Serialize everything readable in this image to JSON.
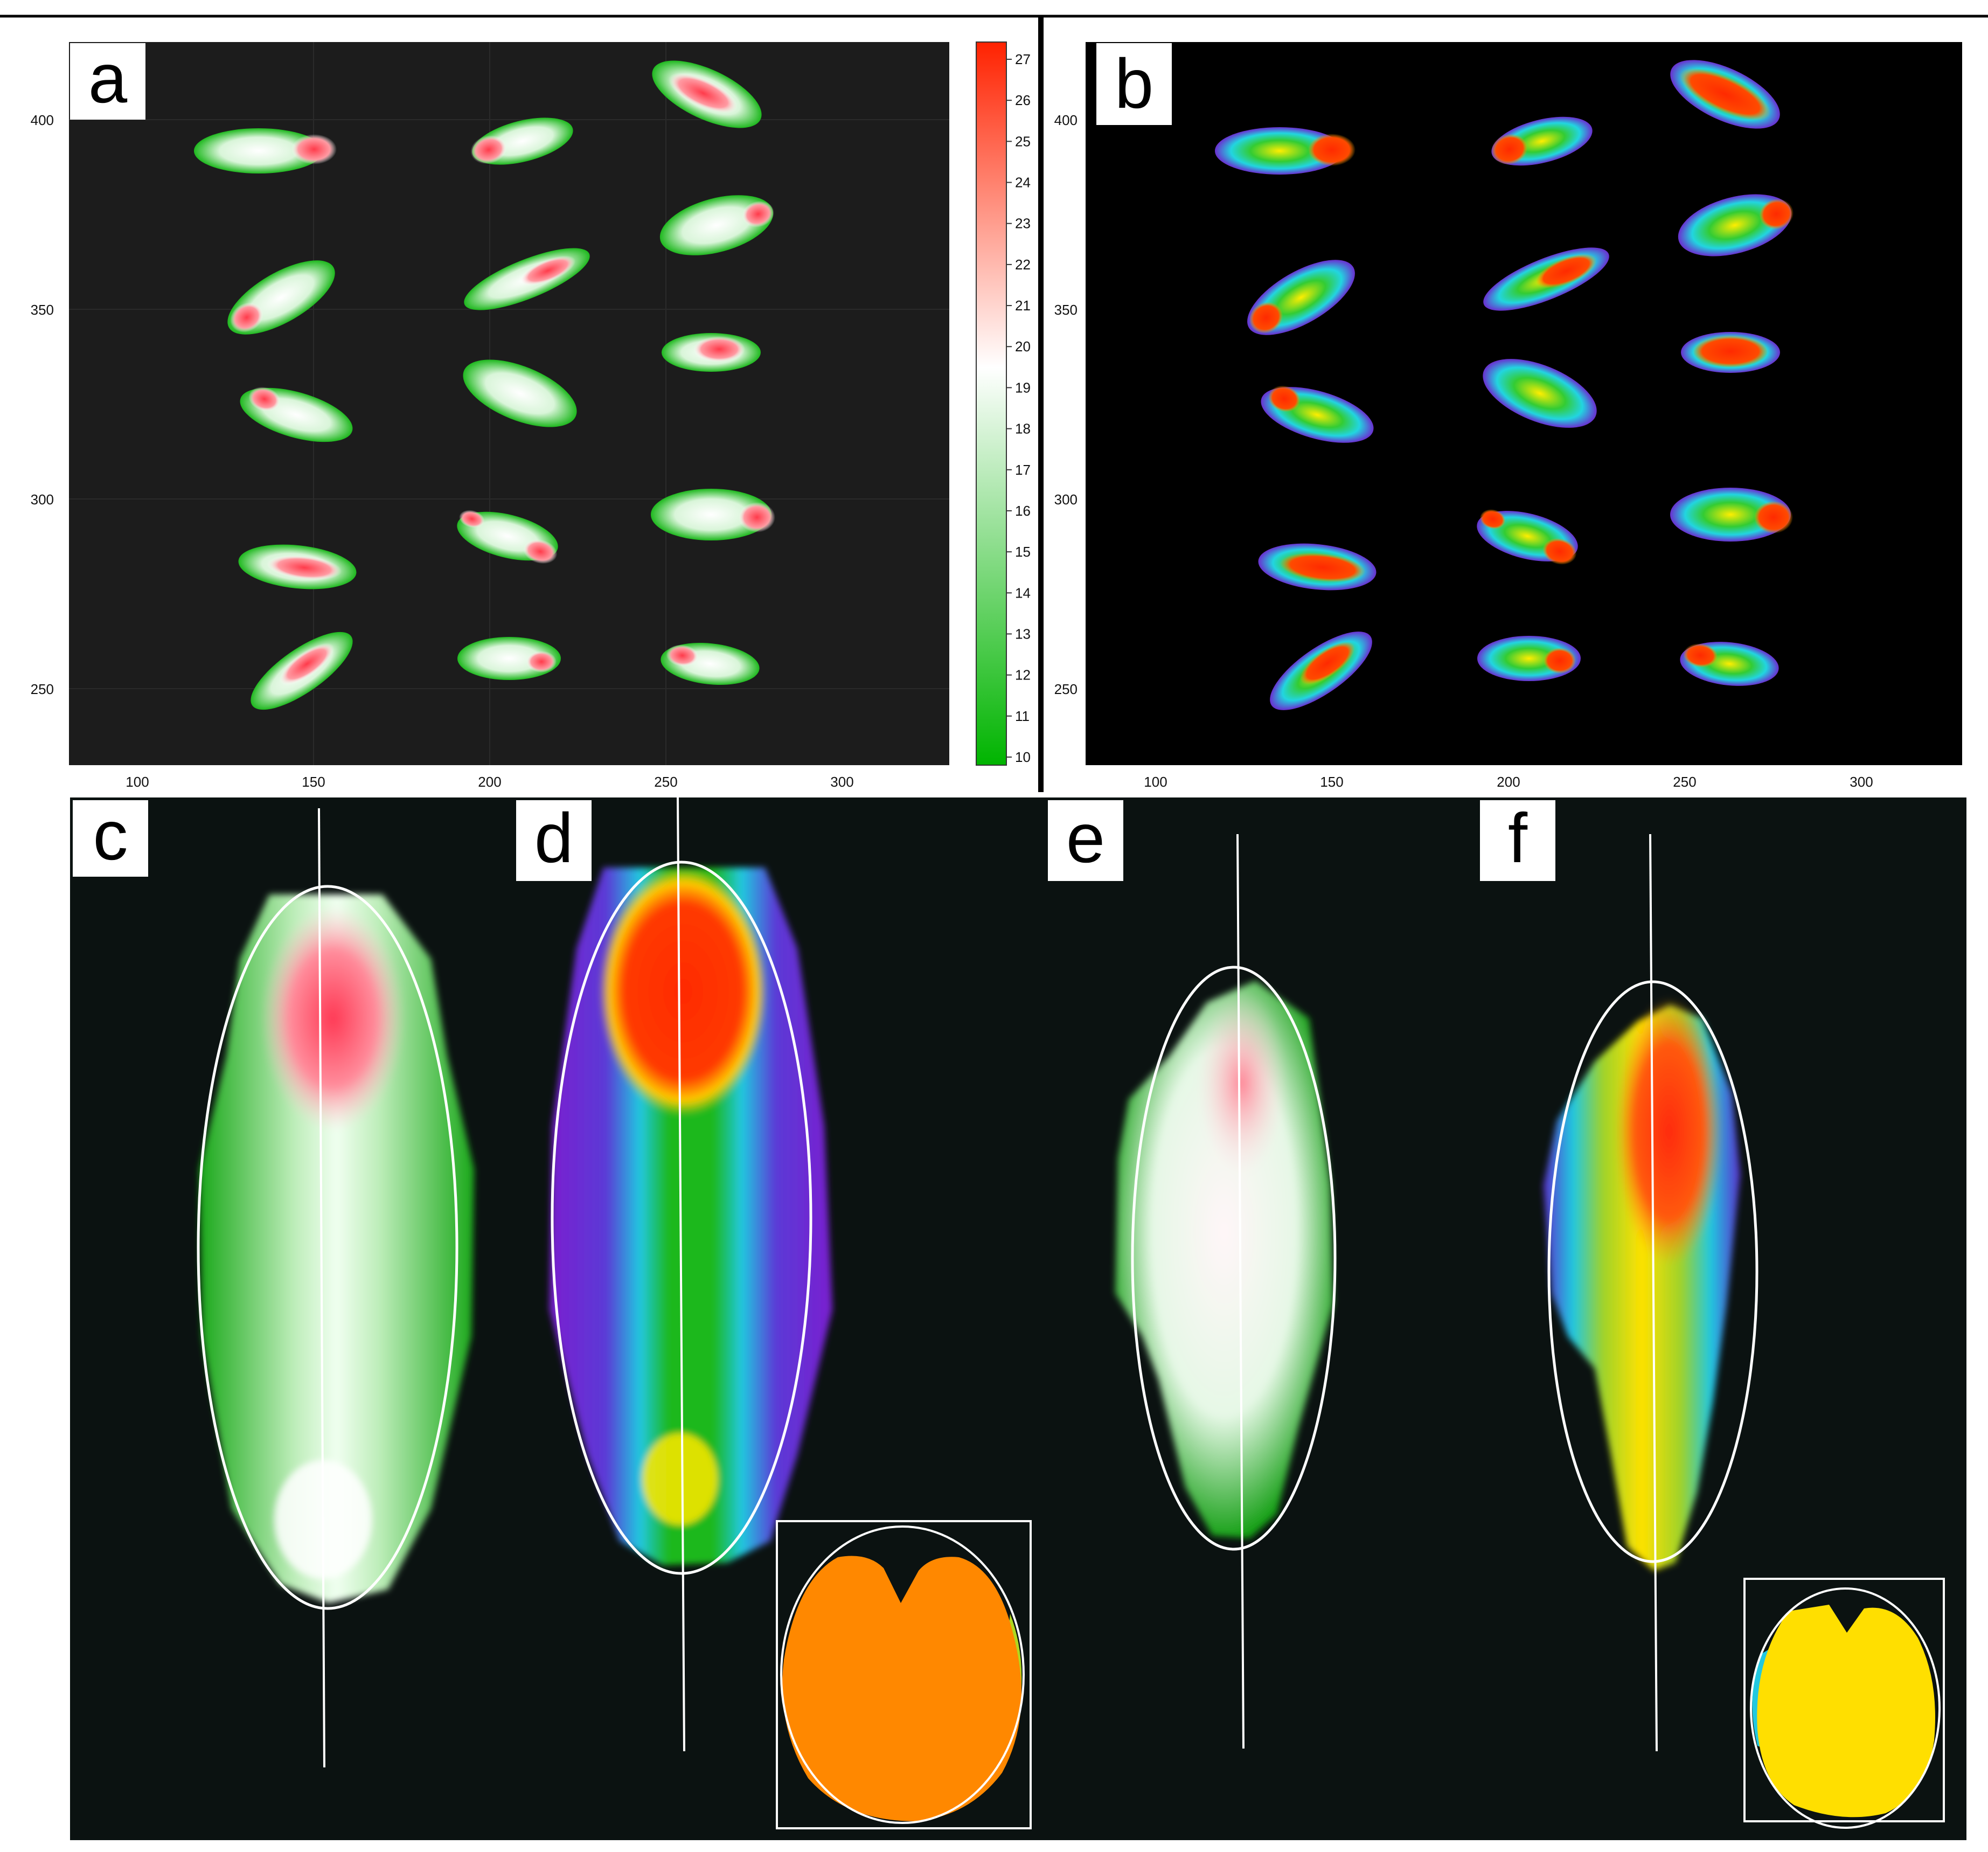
{
  "panels": {
    "a": {
      "label": "a"
    },
    "b": {
      "label": "b"
    },
    "c": {
      "label": "c"
    },
    "d": {
      "label": "d"
    },
    "e": {
      "label": "e"
    },
    "f": {
      "label": "f"
    }
  },
  "plot_axes": {
    "x_ticks": [
      "100",
      "150",
      "200",
      "250",
      "300"
    ],
    "y_ticks": [
      "400",
      "350",
      "300",
      "250"
    ]
  },
  "colorbar": {
    "ticks": [
      "27",
      "26",
      "25",
      "24",
      "23",
      "22",
      "21",
      "20",
      "19",
      "18",
      "17",
      "16",
      "15",
      "14",
      "13",
      "12",
      "11",
      "10"
    ],
    "colors": [
      "#00b400",
      "#ffffff",
      "#ff2200"
    ]
  },
  "colors": {
    "background_dark": "#1c1c1c",
    "background_black": "#000000",
    "background_bottom": "#0b1211",
    "accent_orange": "#ff8800",
    "accent_yellow": "#ffe000"
  }
}
